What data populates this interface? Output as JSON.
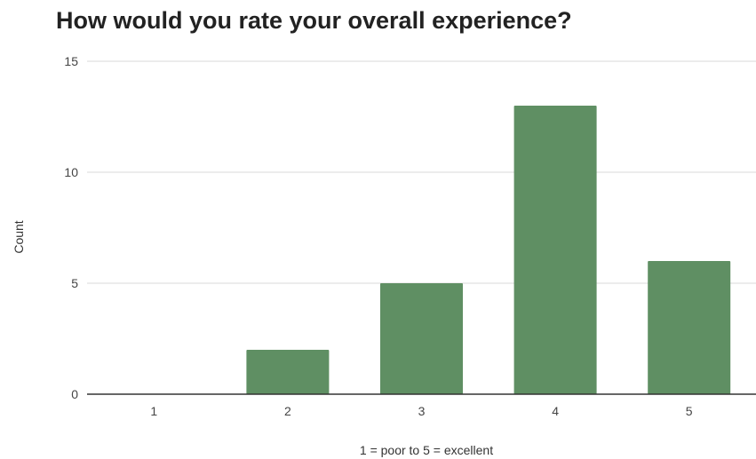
{
  "chart_data": {
    "type": "bar",
    "title": "How would you rate your overall experience?",
    "xlabel": "1 = poor  to  5 = excellent",
    "ylabel": "Count",
    "categories": [
      "1",
      "2",
      "3",
      "4",
      "5"
    ],
    "values": [
      0,
      2,
      5,
      13,
      6
    ],
    "ylim": [
      0,
      15
    ],
    "yticks": [
      0,
      5,
      10,
      15
    ],
    "grid": true,
    "legend": "none",
    "colors": {
      "bar": "#5f8f63",
      "grid": "#d9d9d9",
      "axis": "#333333",
      "text": "#444444",
      "title": "#222222"
    }
  }
}
